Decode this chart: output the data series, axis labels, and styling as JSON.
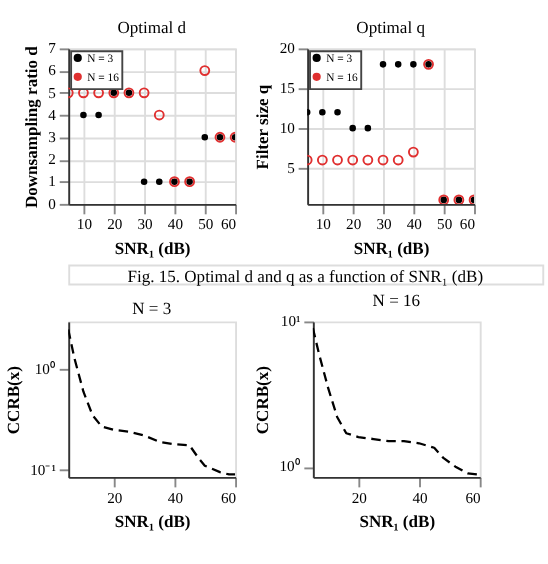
{
  "chart_data": [
    {
      "type": "scatter",
      "title": "Optimal d",
      "xlabel": "SNR₁ (dB)",
      "ylabel": "Downsampling ratio d",
      "x": [
        5,
        10,
        15,
        20,
        25,
        30,
        35,
        40,
        45,
        50,
        55,
        60
      ],
      "xlim": [
        5,
        60
      ],
      "xticks": [
        10,
        20,
        30,
        40,
        50,
        60
      ],
      "ylim": [
        0,
        7
      ],
      "yticks": [
        0,
        1,
        2,
        3,
        4,
        5,
        6,
        7
      ],
      "grid": true,
      "legend": "top left",
      "marker": "circle",
      "series": [
        {
          "name": "N = 3",
          "color": "#000000",
          "values": [
            null,
            4,
            4,
            5,
            5,
            1,
            1,
            1,
            1,
            3,
            3,
            3
          ]
        },
        {
          "name": "N = 16",
          "color": "#e03030",
          "values": [
            5,
            5,
            5,
            5,
            5,
            5,
            4,
            1,
            1,
            6,
            3,
            3
          ]
        }
      ],
      "annotations": [
        "Fig. 15.  Optimal d and q as a function of SNR₁ (dB)"
      ]
    },
    {
      "type": "scatter",
      "title": "Optimal q",
      "xlabel": "SNR₁ (dB)",
      "ylabel": "Filter size q",
      "x": [
        5,
        10,
        15,
        20,
        25,
        30,
        35,
        40,
        45,
        50,
        55,
        60
      ],
      "xlim": [
        5,
        60
      ],
      "xticks": [
        10,
        20,
        30,
        40,
        50,
        60
      ],
      "ylim": [
        0.5,
        20
      ],
      "yticks": [
        5,
        10,
        15,
        20
      ],
      "grid": true,
      "legend": "top left",
      "marker": "circle",
      "series": [
        {
          "name": "N = 3",
          "color": "#000000",
          "values": [
            12,
            12,
            12,
            10,
            10,
            18,
            18,
            18,
            18,
            1,
            1,
            1
          ]
        },
        {
          "name": "N = 16",
          "color": "#e03030",
          "values": [
            6,
            6,
            6,
            6,
            6,
            6,
            6,
            7,
            18,
            1,
            1,
            1
          ]
        }
      ]
    },
    {
      "type": "line",
      "title": "N = 3",
      "xlabel": "SNR₁ (dB)",
      "ylabel": "CCRB(x)",
      "log": "y",
      "line_style": "dashed",
      "xlim": [
        5,
        60
      ],
      "xticks": [
        20,
        40,
        60
      ],
      "ylim": [
        0.085,
        3
      ],
      "yticks": [
        {
          "value": 0.1,
          "label": "10⁻¹"
        },
        {
          "value": 1,
          "label": "10⁰"
        }
      ],
      "series": [
        {
          "color": "#000000",
          "x": [
            5,
            7,
            10,
            13,
            16,
            20,
            25,
            30,
            35,
            40,
            45,
            48,
            50,
            55,
            58,
            60
          ],
          "values": [
            2.5,
            1.3,
            0.6,
            0.35,
            0.27,
            0.25,
            0.24,
            0.22,
            0.19,
            0.18,
            0.175,
            0.13,
            0.11,
            0.095,
            0.09,
            0.09
          ]
        }
      ]
    },
    {
      "type": "line",
      "title": "N = 16",
      "xlabel": "SNR₁ (dB)",
      "ylabel": "CCRB(x)",
      "log": "y",
      "line_style": "dashed",
      "xlim": [
        5,
        60
      ],
      "xticks": [
        20,
        40,
        60
      ],
      "ylim": [
        0.85,
        10
      ],
      "yticks": [
        {
          "value": 1,
          "label": "10⁰"
        },
        {
          "value": 10,
          "label": "10¹"
        }
      ],
      "series": [
        {
          "color": "#000000",
          "x": [
            5,
            7,
            10,
            13,
            16,
            20,
            25,
            30,
            35,
            40,
            45,
            48,
            52,
            56,
            60
          ],
          "values": [
            9,
            6,
            3.5,
            2.2,
            1.7,
            1.6,
            1.55,
            1.5,
            1.5,
            1.45,
            1.35,
            1.15,
            1.0,
            0.9,
            0.88
          ]
        }
      ]
    }
  ]
}
